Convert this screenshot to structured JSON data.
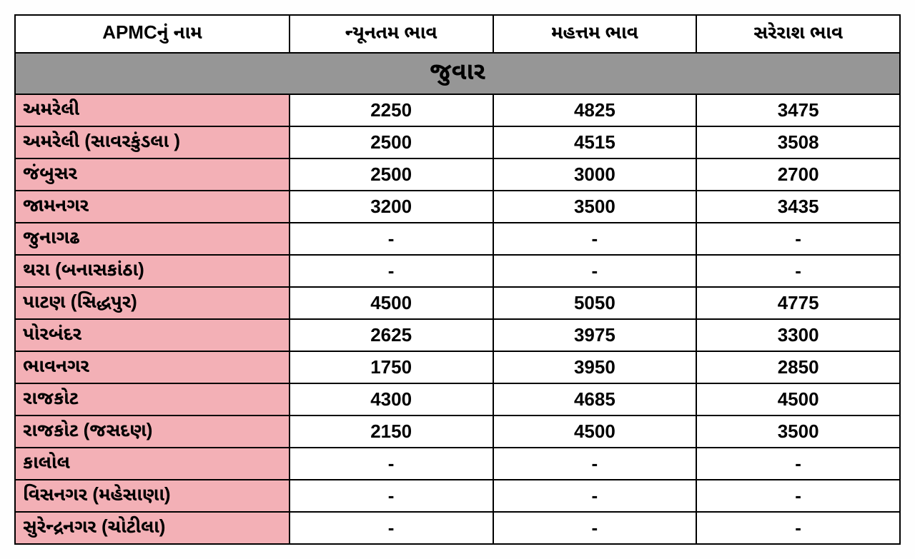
{
  "table": {
    "title": "જુવાર",
    "columns": [
      "APMCનું નામ",
      "ન્યૂનતમ ભાવ",
      "મહત્તમ ભાવ",
      "સરેરાશ ભાવ"
    ],
    "rows": [
      {
        "name": "અમરેલી",
        "min": "2250",
        "max": "4825",
        "avg": "3475"
      },
      {
        "name": "અમરેલી (સાવરકુંડલા )",
        "min": "2500",
        "max": "4515",
        "avg": "3508"
      },
      {
        "name": "જંબુસર",
        "min": "2500",
        "max": "3000",
        "avg": "2700"
      },
      {
        "name": "જામનગર",
        "min": "3200",
        "max": "3500",
        "avg": "3435"
      },
      {
        "name": "જુનાગઢ",
        "min": "-",
        "max": "-",
        "avg": "-"
      },
      {
        "name": "થરા (બનાસકાંઠા)",
        "min": "-",
        "max": "-",
        "avg": "-"
      },
      {
        "name": "પાટણ (સિદ્ધપુર)",
        "min": "4500",
        "max": "5050",
        "avg": "4775"
      },
      {
        "name": "પોરબંદર",
        "min": "2625",
        "max": "3975",
        "avg": "3300"
      },
      {
        "name": "ભાવનગર",
        "min": "1750",
        "max": "3950",
        "avg": "2850"
      },
      {
        "name": "રાજકોટ",
        "min": "4300",
        "max": "4685",
        "avg": "4500"
      },
      {
        "name": "રાજકોટ  (જસદણ)",
        "min": "2150",
        "max": "4500",
        "avg": "3500"
      },
      {
        "name": "કાલોલ",
        "min": "-",
        "max": "-",
        "avg": "-"
      },
      {
        "name": "વિસનગર (મહેસાણા)",
        "min": "-",
        "max": "-",
        "avg": "-"
      },
      {
        "name": "સુરેન્દ્રનગર (ચોટીલા)",
        "min": "-",
        "max": "-",
        "avg": "-"
      }
    ],
    "colors": {
      "title_bg": "#969696",
      "name_bg": "#f3b0b6",
      "value_bg": "#ffffff",
      "border": "#000000"
    },
    "fontsizes": {
      "title": 34,
      "header": 26,
      "cell": 26
    }
  }
}
